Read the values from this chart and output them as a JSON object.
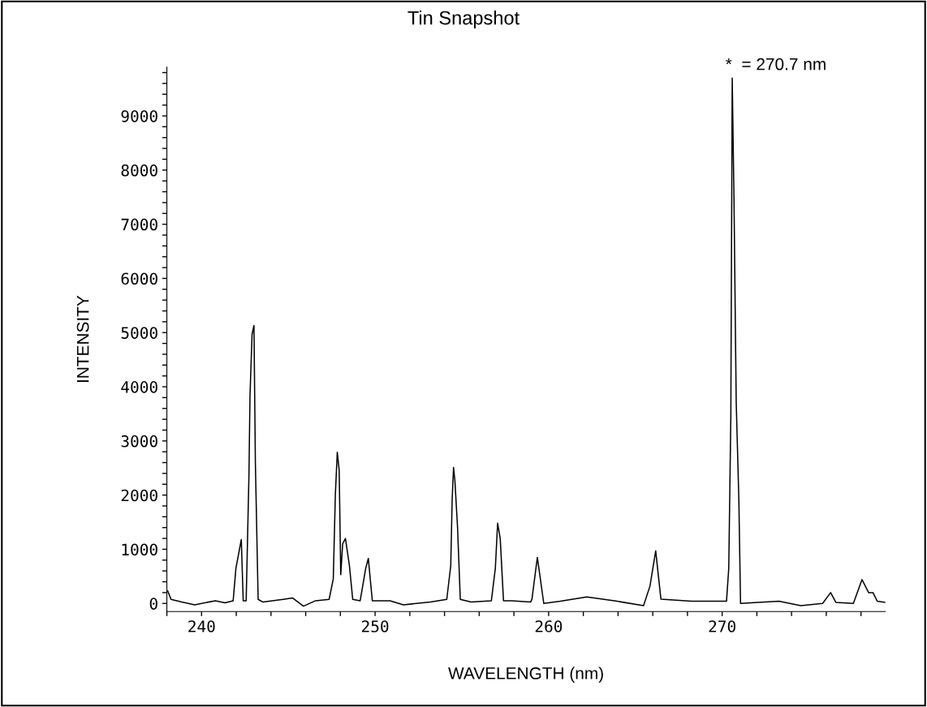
{
  "chart_data": {
    "type": "line",
    "title": "Tin Snapshot",
    "xlabel": "WAVELENGTH (nm)",
    "ylabel": "INTENSITY",
    "annotations": [
      {
        "text": "*  = 270.7 nm",
        "x": 270.58,
        "y": 9700
      }
    ],
    "xlim": [
      238,
      279.4
    ],
    "ylim": [
      -150,
      9900
    ],
    "xticks": [
      {
        "value": 238,
        "label": null
      },
      240,
      {
        "value": 242,
        "label": null
      },
      {
        "value": 244,
        "label": null
      },
      {
        "value": 246,
        "label": null
      },
      {
        "value": 248,
        "label": null
      },
      250,
      {
        "value": 252,
        "label": null
      },
      {
        "value": 254,
        "label": null
      },
      {
        "value": 256,
        "label": null
      },
      {
        "value": 258,
        "label": null
      },
      260,
      {
        "value": 262,
        "label": null
      },
      {
        "value": 264,
        "label": null
      },
      {
        "value": 266,
        "label": null
      },
      {
        "value": 268,
        "label": null
      },
      270,
      {
        "value": 272,
        "label": null
      },
      {
        "value": 274,
        "label": null
      },
      {
        "value": 276,
        "label": null
      },
      {
        "value": 278,
        "label": null
      }
    ],
    "yticks": [
      0,
      {
        "value": 200,
        "label": null
      },
      {
        "value": 400,
        "label": null
      },
      {
        "value": 600,
        "label": null
      },
      {
        "value": 800,
        "label": null
      },
      1000,
      {
        "value": 1200,
        "label": null
      },
      {
        "value": 1400,
        "label": null
      },
      {
        "value": 1600,
        "label": null
      },
      {
        "value": 1800,
        "label": null
      },
      2000,
      {
        "value": 2200,
        "label": null
      },
      {
        "value": 2400,
        "label": null
      },
      {
        "value": 2600,
        "label": null
      },
      {
        "value": 2800,
        "label": null
      },
      3000,
      {
        "value": 3200,
        "label": null
      },
      {
        "value": 3400,
        "label": null
      },
      {
        "value": 3600,
        "label": null
      },
      {
        "value": 3800,
        "label": null
      },
      4000,
      {
        "value": 4200,
        "label": null
      },
      {
        "value": 4400,
        "label": null
      },
      {
        "value": 4600,
        "label": null
      },
      {
        "value": 4800,
        "label": null
      },
      5000,
      {
        "value": 5200,
        "label": null
      },
      {
        "value": 5400,
        "label": null
      },
      {
        "value": 5600,
        "label": null
      },
      {
        "value": 5800,
        "label": null
      },
      6000,
      {
        "value": 6200,
        "label": null
      },
      {
        "value": 6400,
        "label": null
      },
      {
        "value": 6600,
        "label": null
      },
      {
        "value": 6800,
        "label": null
      },
      7000,
      {
        "value": 7200,
        "label": null
      },
      {
        "value": 7400,
        "label": null
      },
      {
        "value": 7600,
        "label": null
      },
      {
        "value": 7800,
        "label": null
      },
      8000,
      {
        "value": 8200,
        "label": null
      },
      {
        "value": 8400,
        "label": null
      },
      {
        "value": 8600,
        "label": null
      },
      {
        "value": 8800,
        "label": null
      },
      9000,
      {
        "value": 9200,
        "label": null
      },
      {
        "value": 9400,
        "label": null
      },
      {
        "value": 9600,
        "label": null
      },
      {
        "value": 9800,
        "label": null
      }
    ],
    "grid": false,
    "legend": false,
    "marker": "none",
    "line_style": "solid",
    "series": [
      {
        "color": "#000000",
        "x": [
          238.05,
          238.24,
          238.86,
          239.6,
          240.8,
          241.35,
          241.82,
          241.98,
          242.29,
          242.4,
          242.57,
          242.73,
          242.79,
          242.91,
          243.02,
          243.1,
          243.26,
          243.54,
          244.7,
          245.25,
          245.87,
          246.57,
          247.35,
          247.59,
          247.71,
          247.82,
          247.93,
          248.02,
          248.13,
          248.29,
          248.52,
          248.71,
          249.14,
          249.46,
          249.61,
          249.84,
          250.86,
          251.63,
          253.19,
          254.13,
          254.36,
          254.44,
          254.52,
          254.6,
          254.75,
          254.91,
          255.53,
          256.7,
          256.93,
          257.06,
          257.21,
          257.4,
          257.87,
          258.96,
          259.04,
          259.35,
          259.72,
          260.68,
          262.2,
          263.95,
          265.47,
          265.84,
          266.17,
          266.47,
          268.24,
          270.25,
          270.38,
          270.5,
          270.58,
          270.68,
          270.81,
          270.96,
          271.06,
          273.27,
          274.53,
          275.79,
          276.25,
          276.55,
          277.56,
          278.06,
          278.44,
          278.69,
          278.94,
          279.4
        ],
        "values": [
          230,
          75,
          25,
          -25,
          50,
          10,
          50,
          650,
          1180,
          50,
          50,
          2360,
          3820,
          4970,
          5130,
          2610,
          75,
          25,
          75,
          100,
          -50,
          50,
          75,
          450,
          2010,
          2790,
          2460,
          530,
          1100,
          1200,
          700,
          75,
          50,
          650,
          830,
          50,
          50,
          -25,
          25,
          75,
          700,
          1910,
          2510,
          2260,
          1410,
          75,
          25,
          50,
          650,
          1480,
          1200,
          50,
          50,
          25,
          80,
          850,
          0,
          40,
          120,
          40,
          -40,
          320,
          970,
          80,
          40,
          40,
          650,
          3470,
          9700,
          7500,
          3710,
          1940,
          0,
          40,
          -40,
          0,
          200,
          20,
          0,
          440,
          200,
          200,
          40,
          20
        ]
      }
    ]
  }
}
